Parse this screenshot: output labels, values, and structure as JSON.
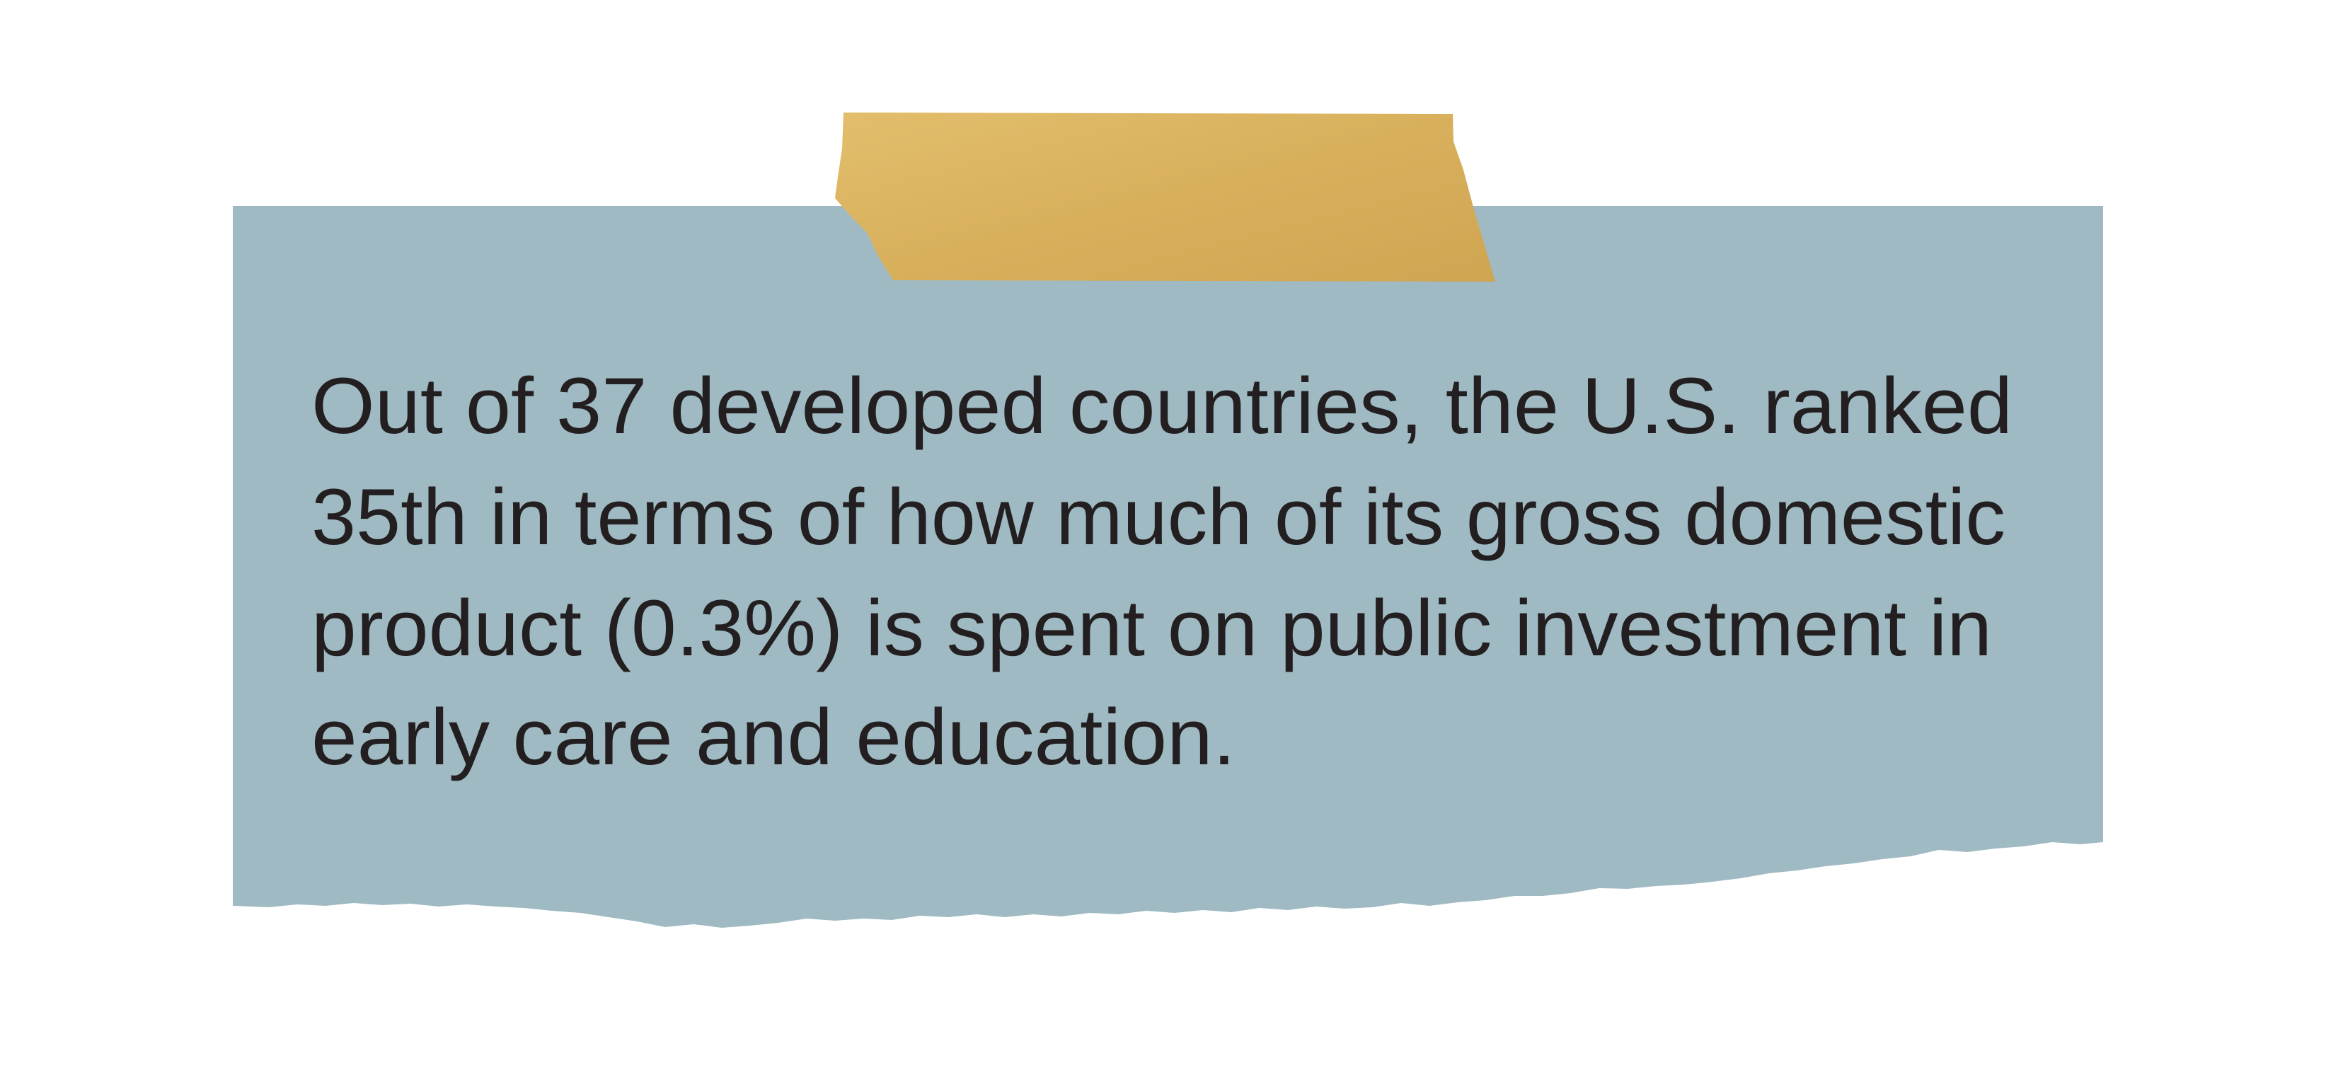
{
  "colors": {
    "background": "#ffffff",
    "paper": "#9fbac3",
    "tape": "#d9b25e",
    "text": "#231f20"
  },
  "note": {
    "lines": [
      "Out of 37 developed countries, the U.S. ranked",
      "35th in terms of how much of its gross domestic",
      "product (0.3%) is spent on public investment in",
      "early care and education."
    ]
  }
}
